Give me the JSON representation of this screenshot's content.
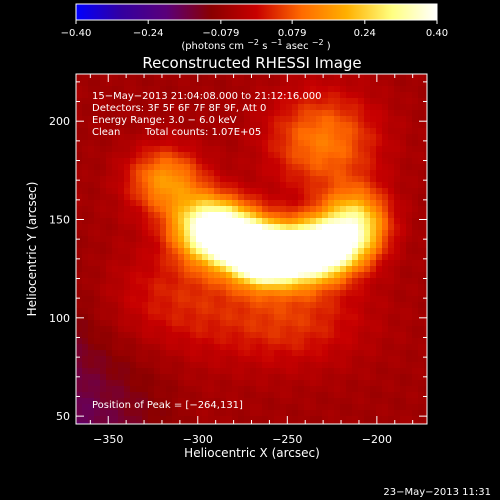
{
  "chart_data": {
    "type": "heatmap",
    "title": "Reconstructed RHESSI Image",
    "colorbar": {
      "label_main": "(photons cm",
      "label_sup1": "−2",
      "label_mid1": " s",
      "label_sup2": "−1",
      "label_mid2": " asec",
      "label_sup3": "−2",
      "label_end": ")",
      "min": -0.4,
      "max": 0.4,
      "tick_labels": [
        "−0.40",
        "−0.24",
        "−0.079",
        "0.079",
        "0.24",
        "0.40"
      ],
      "colormap": "rainbow + white",
      "stops": [
        "#0000ff",
        "#3300a0",
        "#5a007a",
        "#8a0000",
        "#c80000",
        "#ff6a00",
        "#ffb000",
        "#ffff80",
        "#ffffff"
      ]
    },
    "xlabel": "Heliocentric X (arcsec)",
    "ylabel": "Heliocentric Y (arcsec)",
    "xlim": [
      -368,
      -172
    ],
    "ylim": [
      46,
      224
    ],
    "x_ticks": [
      {
        "value": -350,
        "label": "−350"
      },
      {
        "value": -300,
        "label": "−300"
      },
      {
        "value": -250,
        "label": "−250"
      },
      {
        "value": -200,
        "label": "−200"
      }
    ],
    "y_ticks": [
      {
        "value": 50,
        "label": "50"
      },
      {
        "value": 100,
        "label": "100"
      },
      {
        "value": 150,
        "label": "150"
      },
      {
        "value": 200,
        "label": "200"
      }
    ],
    "annotations": [
      "15−May−2013 21:04:08.000 to 21:12:16.000",
      "Detectors: 3F 5F 6F 7F 8F 9F, Att 0",
      "Energy Range: 3.0 − 6.0 keV",
      "Clean",
      "Total counts: 1.07E+05"
    ],
    "peak_text": "Position of Peak = [−264,131]",
    "peak": {
      "x": -264,
      "y": 131
    },
    "hot_sources": [
      {
        "x": -318,
        "y": 170,
        "sx": 15,
        "sy": 12,
        "amp": 0.42
      },
      {
        "x": -295,
        "y": 147,
        "sx": 14,
        "sy": 11,
        "amp": 0.62
      },
      {
        "x": -280,
        "y": 140,
        "sx": 15,
        "sy": 11,
        "amp": 0.82
      },
      {
        "x": -264,
        "y": 131,
        "sx": 11,
        "sy": 9,
        "amp": 1.0
      },
      {
        "x": -245,
        "y": 132,
        "sx": 14,
        "sy": 10,
        "amp": 0.84
      },
      {
        "x": -228,
        "y": 136,
        "sx": 14,
        "sy": 10,
        "amp": 0.75
      },
      {
        "x": -212,
        "y": 148,
        "sx": 13,
        "sy": 12,
        "amp": 0.62
      },
      {
        "x": -230,
        "y": 190,
        "sx": 22,
        "sy": 18,
        "amp": 0.35
      },
      {
        "x": -250,
        "y": 100,
        "sx": 32,
        "sy": 18,
        "amp": 0.22
      },
      {
        "x": -320,
        "y": 110,
        "sx": 28,
        "sy": 20,
        "amp": 0.18
      }
    ],
    "background_level": 0.18,
    "date_footer": "23−May−2013 11:31"
  }
}
